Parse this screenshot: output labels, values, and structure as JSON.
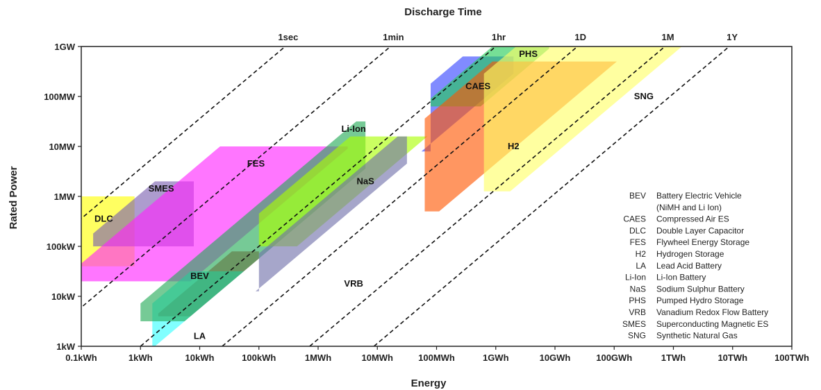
{
  "chart_data": {
    "type": "area",
    "title": "Discharge Time",
    "xlabel": "Energy",
    "ylabel": "Rated Power",
    "x_ticks": [
      "0.1kWh",
      "1kWh",
      "10kWh",
      "100kWh",
      "1MWh",
      "10MWh",
      "100MWh",
      "1GWh",
      "10GWh",
      "100GWh",
      "1TWh",
      "10TWh",
      "100TWh"
    ],
    "y_ticks": [
      "1kW",
      "10kW",
      "100kW",
      "1MW",
      "10MW",
      "100MW",
      "1GW"
    ],
    "discharge_lines": [
      "1sec",
      "1min",
      "1hr",
      "1D",
      "1M",
      "1Y"
    ],
    "regions": [
      {
        "name": "DLC",
        "label": "DLC",
        "color": "#ffff00",
        "energy_log10": [
          -1.0,
          -0.1
        ],
        "power_log10": [
          4.6,
          6.0
        ],
        "discharge_log10_s": [
          -0.5,
          2.8
        ]
      },
      {
        "name": "SMES",
        "label": "SMES",
        "color": "#7a5fb0",
        "energy_log10": [
          -0.8,
          0.9
        ],
        "power_log10": [
          5.0,
          6.3
        ],
        "discharge_log10_s": [
          0.5,
          2.6
        ]
      },
      {
        "name": "FES",
        "label": "FES",
        "color": "#ff22ff",
        "energy_log10": [
          -1.0,
          3.5
        ],
        "power_log10": [
          4.3,
          7.0
        ],
        "discharge_log10_s": [
          0.9,
          3.1
        ]
      },
      {
        "name": "BEV",
        "label": "BEV",
        "color": "#cc2222",
        "energy_log10": [
          0.3,
          2.0
        ],
        "power_log10": [
          3.6,
          4.9
        ],
        "discharge_log10_s": [
          3.2,
          3.8
        ]
      },
      {
        "name": "LA",
        "label": "LA",
        "color": "#33ffff",
        "energy_log10": [
          0.2,
          2.3
        ],
        "power_log10": [
          3.0,
          4.5
        ],
        "discharge_log10_s": [
          2.9,
          3.8
        ]
      },
      {
        "name": "Li-Ion",
        "label": "Li-Ion",
        "color": "#22aa55",
        "energy_log10": [
          0.0,
          3.8
        ],
        "power_log10": [
          3.5,
          7.5
        ],
        "discharge_log10_s": [
          2.7,
          3.8
        ]
      },
      {
        "name": "NaS",
        "label": "NaS",
        "color": "#aaff00",
        "energy_log10": [
          2.0,
          5.6
        ],
        "power_log10": [
          5.0,
          7.2
        ],
        "discharge_log10_s": [
          2.9,
          4.2
        ]
      },
      {
        "name": "VRB",
        "label": "VRB",
        "color": "#7070aa",
        "energy_log10": [
          2.0,
          4.5
        ],
        "power_log10": [
          4.1,
          7.2
        ],
        "discharge_log10_s": [
          3.7,
          4.4
        ]
      },
      {
        "name": "CAES",
        "label": "CAES",
        "color": "#3344ff",
        "energy_log10": [
          4.9,
          6.3
        ],
        "power_log10": [
          6.9,
          8.8
        ],
        "discharge_log10_s": [
          3.2,
          4.4
        ]
      },
      {
        "name": "PHS",
        "label": "PHS",
        "color": "#22cc55",
        "energy_log10": [
          4.9,
          6.9
        ],
        "power_log10": [
          7.8,
          9.0
        ],
        "discharge_log10_s": [
          3.5,
          4.5
        ]
      },
      {
        "name": "H2",
        "label": "H2",
        "color": "#ff5500",
        "energy_log10": [
          4.8,
          8.6
        ],
        "power_log10": [
          5.7,
          8.7
        ],
        "discharge_log10_s": [
          3.8,
          5.9
        ]
      },
      {
        "name": "SNG",
        "label": "SNG",
        "color": "#ffff66",
        "energy_log10": [
          5.8,
          9.8
        ],
        "power_log10": [
          6.1,
          9.0
        ],
        "discharge_log10_s": [
          3.9,
          6.7
        ]
      }
    ],
    "legend": [
      {
        "abbr": "BEV",
        "desc": "Battery Electric Vehicle"
      },
      {
        "abbr": "",
        "desc": "(NiMH and Li Ion)"
      },
      {
        "abbr": "CAES",
        "desc": "Compressed Air ES"
      },
      {
        "abbr": "DLC",
        "desc": "Double Layer Capacitor"
      },
      {
        "abbr": "FES",
        "desc": "Flywheel Energy Storage"
      },
      {
        "abbr": "H2",
        "desc": "Hydrogen Storage"
      },
      {
        "abbr": "LA",
        "desc": "Lead Acid Battery"
      },
      {
        "abbr": "Li-Ion",
        "desc": "Li-Ion Battery"
      },
      {
        "abbr": "NaS",
        "desc": "Sodium Sulphur Battery"
      },
      {
        "abbr": "PHS",
        "desc": "Pumped Hydro Storage"
      },
      {
        "abbr": "VRB",
        "desc": "Vanadium Redox Flow Battery"
      },
      {
        "abbr": "SMES",
        "desc": "Superconducting Magnetic ES"
      },
      {
        "abbr": "SNG",
        "desc": "Synthetic Natural Gas"
      }
    ],
    "legend_position": "bottom-right",
    "grid": false
  }
}
